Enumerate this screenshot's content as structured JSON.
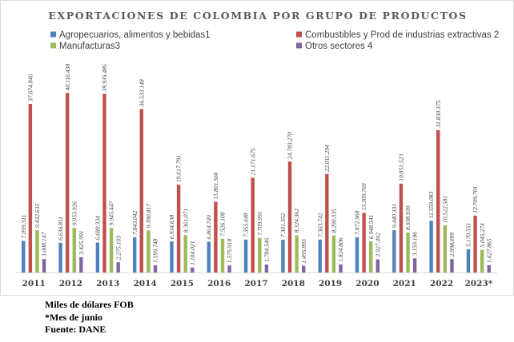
{
  "chart_data": {
    "type": "bar",
    "title": "EXPORTACIONES DE COLOMBIA POR GRUPO DE PRODUCTOS",
    "categories": [
      "2011",
      "2012",
      "2013",
      "2014",
      "2015",
      "2016",
      "2017",
      "2018",
      "2019",
      "2020",
      "2021",
      "2022",
      "2023*"
    ],
    "legend_placement": "top",
    "grid": false,
    "ylim": [
      0,
      50000000
    ],
    "series": [
      {
        "name": "Agropecuarios, alimentos y bebidas1",
        "color": "#4f81bd",
        "values": [
          7059311,
          6636811,
          6680334,
          7843042,
          6934638,
          6864749,
          7355648,
          7301352,
          7363742,
          7872968,
          9440331,
          11559083,
          5170551
        ],
        "labels": [
          "7.059.311",
          "6.636.811",
          "6.680.334",
          "7.843.042",
          "6.934.638",
          "6.864.749",
          "7.355.648",
          "7.301.352",
          "7.363.742",
          "7.872.968",
          "9.440.331",
          "11.559.083",
          "5.170.551"
        ]
      },
      {
        "name": "Combustibles y Prod de industrias extractivas 2",
        "color": "#c0504d",
        "values": [
          37674846,
          40116438,
          39935485,
          36533148,
          19617791,
          15801566,
          21171675,
          24783270,
          22011294,
          13309769,
          19851523,
          31830375,
          12709701
        ],
        "labels": [
          "37.674.846",
          "40.116.438",
          "39.935.485",
          "36.533.148",
          "19.617.791",
          "15.801.566",
          "21.171.675",
          "24.783.270",
          "22.011.294",
          "13.309.769",
          "19.851.523",
          "31.830.375",
          "12.709.701"
        ]
      },
      {
        "name": "Manufacturas3",
        "color": "#9bbb59",
        "values": [
          9432635,
          9953926,
          9945447,
          9390817,
          8361071,
          7526108,
          7709991,
          8324362,
          8290335,
          6948541,
          8938939,
          10522581,
          5045274
        ],
        "labels": [
          "9.432.635",
          "9.953.926",
          "9.945.447",
          "9.390.817",
          "8.361.071",
          "7.526.108",
          "7.709.991",
          "8.324.362",
          "8.290.335",
          "6.948.541",
          "8.938.939",
          "10.522.581",
          "5.045.274"
        ]
      },
      {
        "name": "Otros sectores 4",
        "color": "#8064a2",
        "values": [
          3008147,
          3425991,
          2275103,
          1599748,
          1104021,
          1575918,
          1784546,
          1495893,
          1824806,
          2927492,
          3159186,
          2998099,
          1627865
        ],
        "labels": [
          "3.008.147",
          "3.425.991",
          "2.275.103",
          "1.599.748",
          "1.104.021",
          "1.575.918",
          "1.784.546",
          "1.495.893",
          "1.824.806",
          "2.927.492",
          "3.159.186",
          "2.998.099",
          "1.627.865"
        ]
      }
    ]
  },
  "notes": {
    "units": "Miles de dólares FOB",
    "footnote": "*Mes de junio",
    "source": "Fuente: DANE"
  }
}
